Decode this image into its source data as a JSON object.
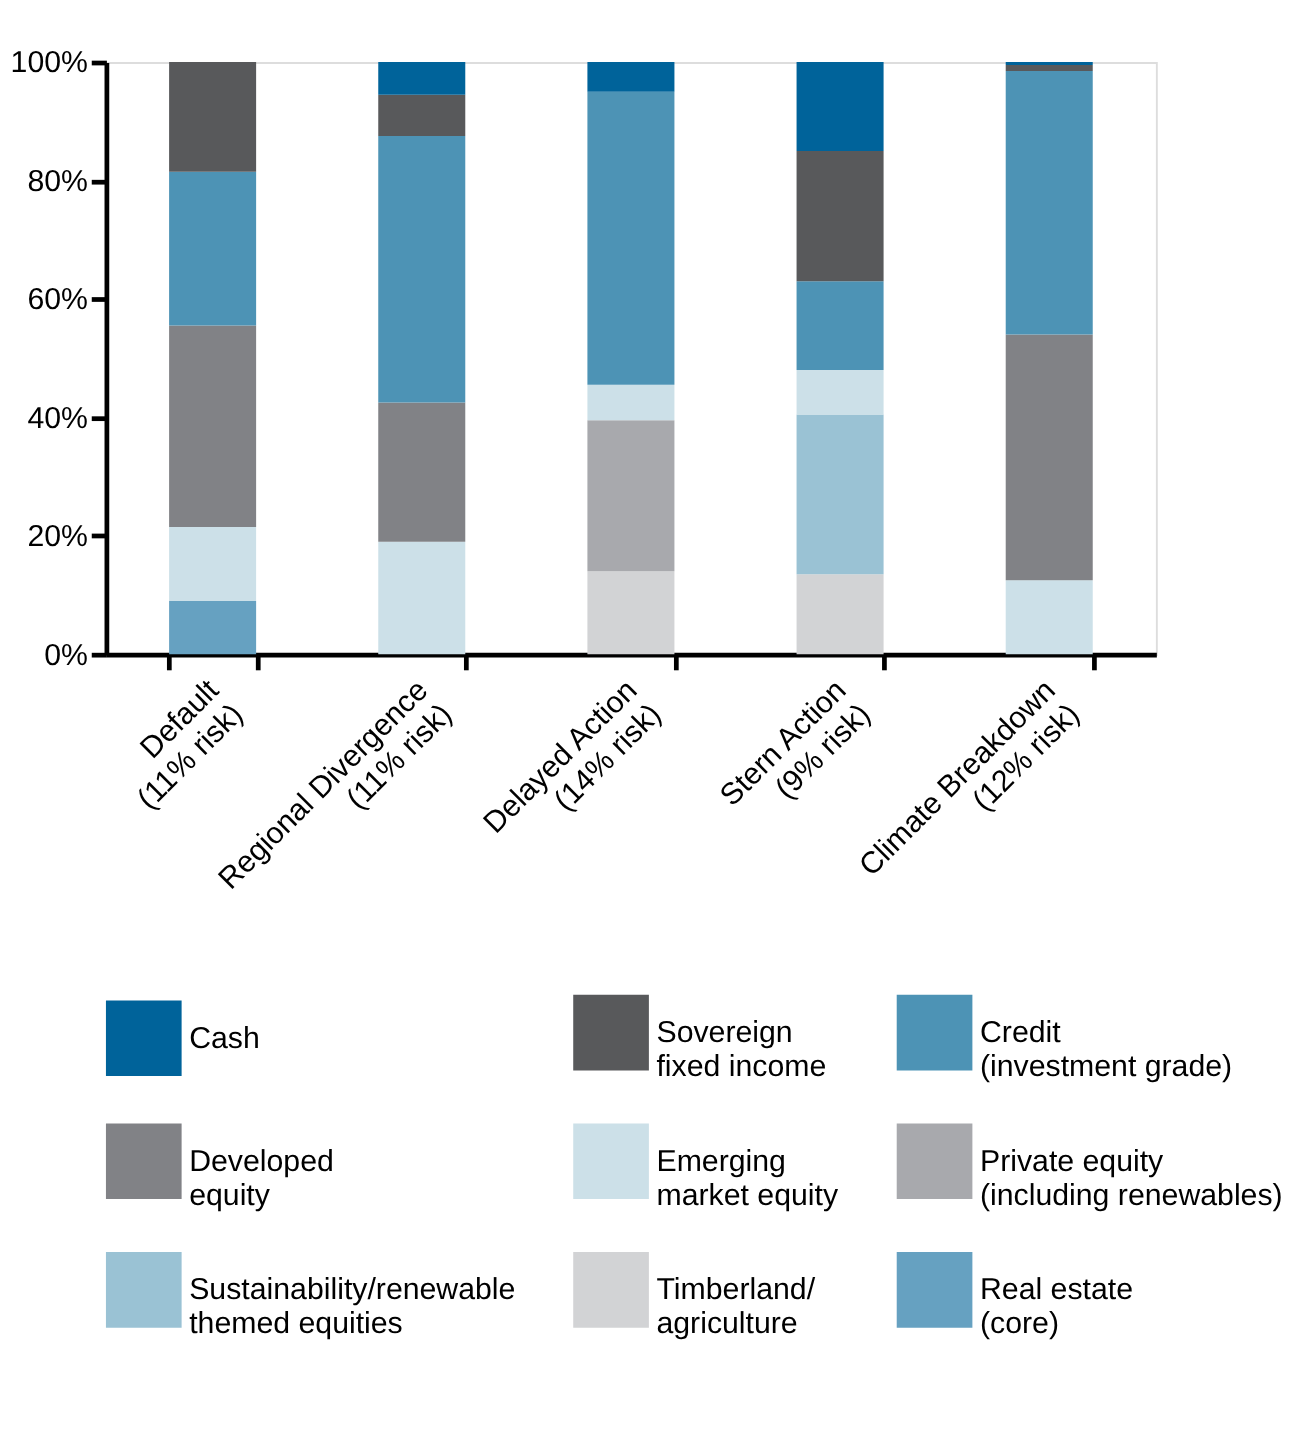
{
  "chart_data": {
    "type": "bar",
    "stacked": true,
    "categories": [
      "Default\n(11% risk)",
      "Regional Divergence\n(11% risk)",
      "Delayed Action\n(14% risk)",
      "Stern Action\n(9% risk)",
      "Climate Breakdown\n(12% risk)"
    ],
    "series": [
      {
        "name": "Real estate\n(core)",
        "color": "#66a1c1",
        "values": [
          9,
          null,
          null,
          null,
          null
        ]
      },
      {
        "name": "Timberland/\nagriculture",
        "color": "#d2d3d5",
        "values": [
          null,
          null,
          14,
          13.5,
          null
        ]
      },
      {
        "name": "Sustainability/renewable\nthemed equities",
        "color": "#9ac2d4",
        "values": [
          null,
          null,
          null,
          27,
          null
        ]
      },
      {
        "name": "Private equity\n(including renewables)",
        "color": "#a8a9ad",
        "values": [
          null,
          null,
          25.5,
          null,
          null
        ]
      },
      {
        "name": "Emerging\nmarket equity",
        "color": "#cce0e8",
        "values": [
          12.5,
          19,
          6,
          7.5,
          12.5
        ]
      },
      {
        "name": "Developed\nequity",
        "color": "#818286",
        "values": [
          34,
          23.5,
          null,
          null,
          41.5
        ]
      },
      {
        "name": "Credit\n(investment grade)",
        "color": "#4d93b5",
        "values": [
          26,
          45,
          49.5,
          15,
          44.5
        ]
      },
      {
        "name": "Sovereign\nfixed income",
        "color": "#58595b",
        "values": [
          18.5,
          7,
          null,
          22,
          1
        ]
      },
      {
        "name": "Cash",
        "color": "#00639a",
        "values": [
          null,
          5.5,
          5,
          15,
          0.5
        ]
      }
    ],
    "ylim": [
      0,
      100
    ],
    "yticks": [
      {
        "value": 0,
        "label": "0%"
      },
      {
        "value": 20,
        "label": "20%"
      },
      {
        "value": 40,
        "label": "40%"
      },
      {
        "value": 60,
        "label": "60%"
      },
      {
        "value": 80,
        "label": "80%"
      },
      {
        "value": 100,
        "label": "100%"
      }
    ],
    "grid": false,
    "legend": "bottom"
  }
}
